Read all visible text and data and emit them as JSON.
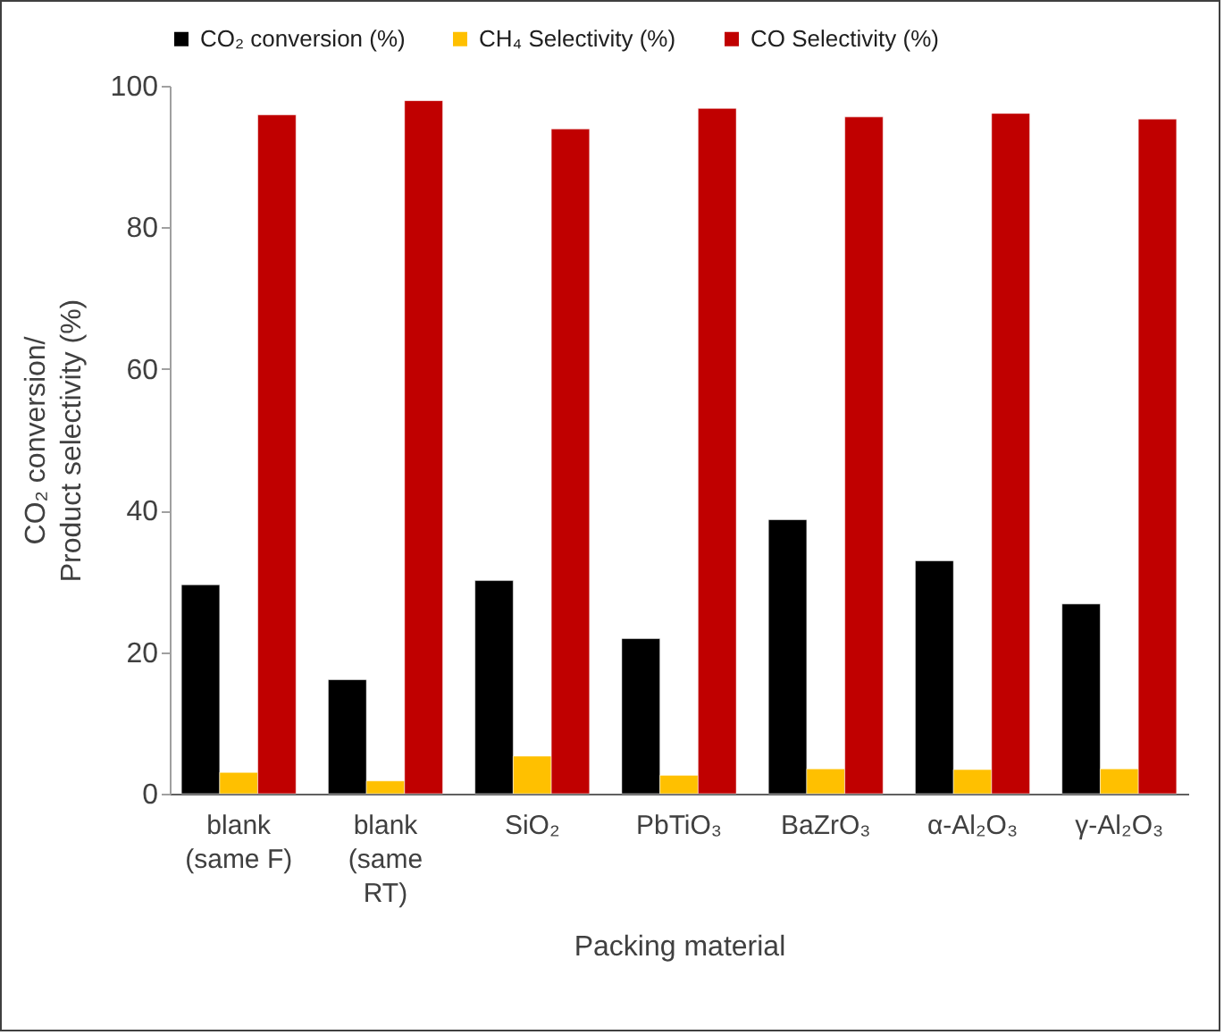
{
  "chart_data": {
    "type": "bar",
    "xlabel": "Packing material",
    "ylabel": "CO₂ conversion/\nProduct selectivity (%)",
    "categories": [
      "blank\n(same F)",
      "blank\n(same\nRT)",
      "SiO₂",
      "PbTiO₃",
      "BaZrO₃",
      "α-Al₂O₃",
      "γ-Al₂O₃"
    ],
    "series": [
      {
        "name": "CO₂ conversion (%)",
        "color": "#000000",
        "values": [
          29.5,
          16.1,
          30.1,
          21.9,
          38.7,
          32.9,
          26.8
        ]
      },
      {
        "name": "CH₄ Selectivity (%)",
        "color": "#ffc000",
        "values": [
          3.0,
          1.8,
          5.3,
          2.6,
          3.5,
          3.4,
          3.5
        ]
      },
      {
        "name": "CO Selectivity (%)",
        "color": "#c00000",
        "values": [
          95.9,
          97.9,
          93.9,
          96.8,
          95.6,
          96.1,
          95.3
        ]
      }
    ],
    "ylim": [
      0,
      100
    ],
    "yticks": [
      0,
      20,
      40,
      60,
      80,
      100
    ],
    "grid": false,
    "legend": "top"
  }
}
